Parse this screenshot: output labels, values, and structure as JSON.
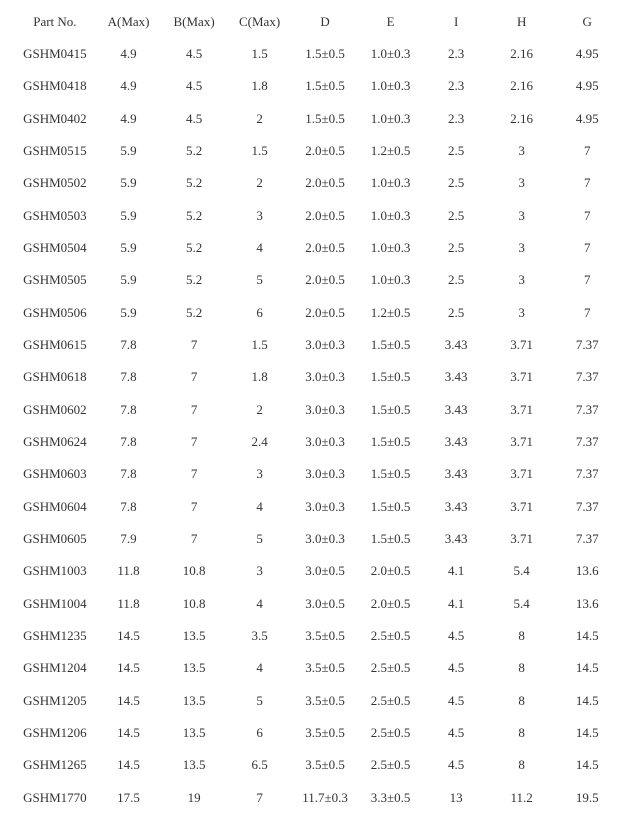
{
  "table": {
    "columns": [
      "Part No.",
      "A(Max)",
      "B(Max)",
      "C(Max)",
      "D",
      "E",
      "I",
      "H",
      "G"
    ],
    "rows": [
      [
        "GSHM0415",
        "4.9",
        "4.5",
        "1.5",
        "1.5±0.5",
        "1.0±0.3",
        "2.3",
        "2.16",
        "4.95"
      ],
      [
        "GSHM0418",
        "4.9",
        "4.5",
        "1.8",
        "1.5±0.5",
        "1.0±0.3",
        "2.3",
        "2.16",
        "4.95"
      ],
      [
        "GSHM0402",
        "4.9",
        "4.5",
        "2",
        "1.5±0.5",
        "1.0±0.3",
        "2.3",
        "2.16",
        "4.95"
      ],
      [
        "GSHM0515",
        "5.9",
        "5.2",
        "1.5",
        "2.0±0.5",
        "1.2±0.5",
        "2.5",
        "3",
        "7"
      ],
      [
        "GSHM0502",
        "5.9",
        "5.2",
        "2",
        "2.0±0.5",
        "1.0±0.3",
        "2.5",
        "3",
        "7"
      ],
      [
        "GSHM0503",
        "5.9",
        "5.2",
        "3",
        "2.0±0.5",
        "1.0±0.3",
        "2.5",
        "3",
        "7"
      ],
      [
        "GSHM0504",
        "5.9",
        "5.2",
        "4",
        "2.0±0.5",
        "1.0±0.3",
        "2.5",
        "3",
        "7"
      ],
      [
        "GSHM0505",
        "5.9",
        "5.2",
        "5",
        "2.0±0.5",
        "1.0±0.3",
        "2.5",
        "3",
        "7"
      ],
      [
        "GSHM0506",
        "5.9",
        "5.2",
        "6",
        "2.0±0.5",
        "1.2±0.5",
        "2.5",
        "3",
        "7"
      ],
      [
        "GSHM0615",
        "7.8",
        "7",
        "1.5",
        "3.0±0.3",
        "1.5±0.5",
        "3.43",
        "3.71",
        "7.37"
      ],
      [
        "GSHM0618",
        "7.8",
        "7",
        "1.8",
        "3.0±0.3",
        "1.5±0.5",
        "3.43",
        "3.71",
        "7.37"
      ],
      [
        "GSHM0602",
        "7.8",
        "7",
        "2",
        "3.0±0.3",
        "1.5±0.5",
        "3.43",
        "3.71",
        "7.37"
      ],
      [
        "GSHM0624",
        "7.8",
        "7",
        "2.4",
        "3.0±0.3",
        "1.5±0.5",
        "3.43",
        "3.71",
        "7.37"
      ],
      [
        "GSHM0603",
        "7.8",
        "7",
        "3",
        "3.0±0.3",
        "1.5±0.5",
        "3.43",
        "3.71",
        "7.37"
      ],
      [
        "GSHM0604",
        "7.8",
        "7",
        "4",
        "3.0±0.3",
        "1.5±0.5",
        "3.43",
        "3.71",
        "7.37"
      ],
      [
        "GSHM0605",
        "7.9",
        "7",
        "5",
        "3.0±0.3",
        "1.5±0.5",
        "3.43",
        "3.71",
        "7.37"
      ],
      [
        "GSHM1003",
        "11.8",
        "10.8",
        "3",
        "3.0±0.5",
        "2.0±0.5",
        "4.1",
        "5.4",
        "13.6"
      ],
      [
        "GSHM1004",
        "11.8",
        "10.8",
        "4",
        "3.0±0.5",
        "2.0±0.5",
        "4.1",
        "5.4",
        "13.6"
      ],
      [
        "GSHM1235",
        "14.5",
        "13.5",
        "3.5",
        "3.5±0.5",
        "2.5±0.5",
        "4.5",
        "8",
        "14.5"
      ],
      [
        "GSHM1204",
        "14.5",
        "13.5",
        "4",
        "3.5±0.5",
        "2.5±0.5",
        "4.5",
        "8",
        "14.5"
      ],
      [
        "GSHM1205",
        "14.5",
        "13.5",
        "5",
        "3.5±0.5",
        "2.5±0.5",
        "4.5",
        "8",
        "14.5"
      ],
      [
        "GSHM1206",
        "14.5",
        "13.5",
        "6",
        "3.5±0.5",
        "2.5±0.5",
        "4.5",
        "8",
        "14.5"
      ],
      [
        "GSHM1265",
        "14.5",
        "13.5",
        "6.5",
        "3.5±0.5",
        "2.5±0.5",
        "4.5",
        "8",
        "14.5"
      ],
      [
        "GSHM1770",
        "17.5",
        "19",
        "7",
        "11.7±0.3",
        "3.3±0.5",
        "13",
        "11.2",
        "19.5"
      ]
    ]
  }
}
